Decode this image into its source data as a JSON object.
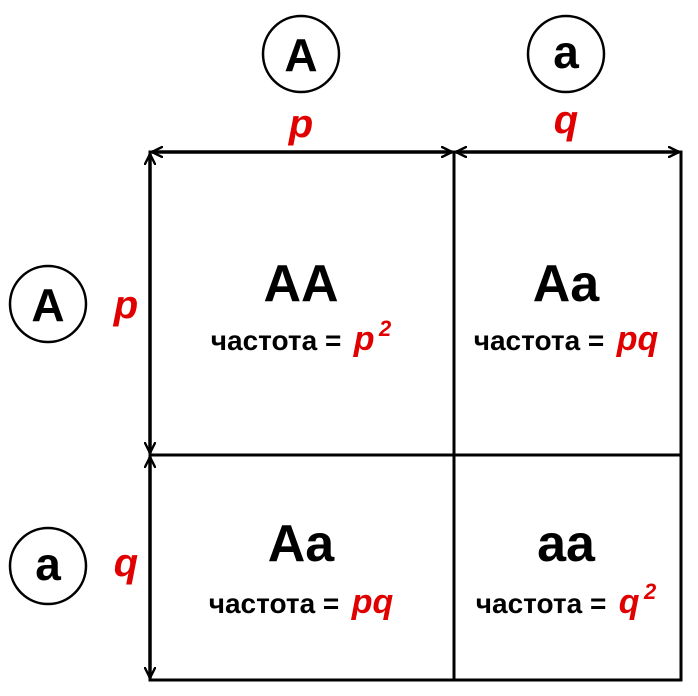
{
  "top_alleles": [
    {
      "allele": "A",
      "freq": "p"
    },
    {
      "allele": "a",
      "freq": "q"
    }
  ],
  "left_alleles": [
    {
      "allele": "A",
      "freq": "p"
    },
    {
      "allele": "a",
      "freq": "q"
    }
  ],
  "cells": [
    {
      "genotype": "AA",
      "label": "частота =",
      "value": "p",
      "sup": "2"
    },
    {
      "genotype": "Aa",
      "label": "частота =",
      "value": "pq",
      "sup": ""
    },
    {
      "genotype": "Aa",
      "label": "частота =",
      "value": "pq",
      "sup": ""
    },
    {
      "genotype": "aa",
      "label": "частота =",
      "value": "q",
      "sup": "2"
    }
  ],
  "colors": {
    "line": "#000000",
    "accent": "#e00000"
  }
}
